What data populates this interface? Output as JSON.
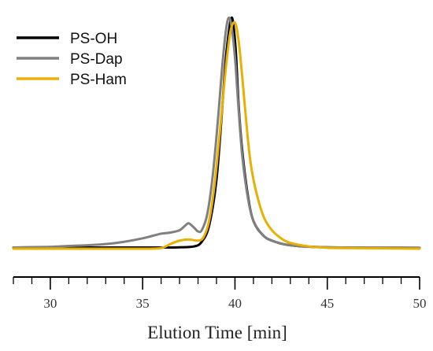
{
  "chart_data": {
    "type": "line",
    "title": "",
    "xlabel": "Elution Time [min]",
    "ylabel": "",
    "xlim": [
      28,
      50
    ],
    "ylim": [
      0,
      1
    ],
    "x_ticks_major": [
      30,
      35,
      40,
      45,
      50
    ],
    "x_tick_labels": [
      "30",
      "35",
      "40",
      "45",
      "50"
    ],
    "y_axis_visible": false,
    "grid": false,
    "legend_position": "top-left",
    "series": [
      {
        "name": "PS-OH",
        "color": "#000000",
        "points": [
          [
            28,
            0.005
          ],
          [
            30,
            0.005
          ],
          [
            32,
            0.005
          ],
          [
            34,
            0.005
          ],
          [
            36,
            0.005
          ],
          [
            37,
            0.006
          ],
          [
            37.8,
            0.01
          ],
          [
            38.2,
            0.03
          ],
          [
            38.6,
            0.1
          ],
          [
            39.0,
            0.3
          ],
          [
            39.3,
            0.6
          ],
          [
            39.5,
            0.82
          ],
          [
            39.7,
            0.96
          ],
          [
            39.8,
            1.0
          ],
          [
            39.9,
            0.98
          ],
          [
            40.05,
            0.85
          ],
          [
            40.2,
            0.62
          ],
          [
            40.4,
            0.42
          ],
          [
            40.7,
            0.23
          ],
          [
            41.0,
            0.12
          ],
          [
            41.5,
            0.06
          ],
          [
            42,
            0.035
          ],
          [
            43,
            0.015
          ],
          [
            45,
            0.006
          ],
          [
            50,
            0.004
          ]
        ]
      },
      {
        "name": "PS-Dap",
        "color": "#808080",
        "points": [
          [
            28,
            0.005
          ],
          [
            29,
            0.007
          ],
          [
            30,
            0.008
          ],
          [
            31,
            0.012
          ],
          [
            32,
            0.015
          ],
          [
            33,
            0.02
          ],
          [
            34,
            0.03
          ],
          [
            35,
            0.045
          ],
          [
            35.5,
            0.055
          ],
          [
            36,
            0.065
          ],
          [
            36.5,
            0.07
          ],
          [
            37,
            0.08
          ],
          [
            37.3,
            0.1
          ],
          [
            37.5,
            0.11
          ],
          [
            37.8,
            0.09
          ],
          [
            38,
            0.075
          ],
          [
            38.2,
            0.08
          ],
          [
            38.5,
            0.15
          ],
          [
            38.8,
            0.32
          ],
          [
            39.1,
            0.58
          ],
          [
            39.3,
            0.78
          ],
          [
            39.5,
            0.94
          ],
          [
            39.65,
            1.0
          ],
          [
            39.8,
            0.97
          ],
          [
            40.0,
            0.83
          ],
          [
            40.2,
            0.6
          ],
          [
            40.4,
            0.4
          ],
          [
            40.7,
            0.22
          ],
          [
            41.0,
            0.12
          ],
          [
            41.5,
            0.06
          ],
          [
            42,
            0.035
          ],
          [
            43,
            0.015
          ],
          [
            45,
            0.006
          ],
          [
            50,
            0.004
          ]
        ]
      },
      {
        "name": "PS-Ham",
        "color": "#E8B000",
        "points": [
          [
            28,
            0.0
          ],
          [
            32,
            0.0
          ],
          [
            35,
            0.0
          ],
          [
            36,
            0.003
          ],
          [
            36.5,
            0.02
          ],
          [
            37,
            0.035
          ],
          [
            37.5,
            0.04
          ],
          [
            38.0,
            0.035
          ],
          [
            38.3,
            0.05
          ],
          [
            38.6,
            0.12
          ],
          [
            38.9,
            0.28
          ],
          [
            39.2,
            0.52
          ],
          [
            39.5,
            0.78
          ],
          [
            39.75,
            0.94
          ],
          [
            40.0,
            0.98
          ],
          [
            40.2,
            0.9
          ],
          [
            40.4,
            0.74
          ],
          [
            40.6,
            0.56
          ],
          [
            40.8,
            0.4
          ],
          [
            41.0,
            0.3
          ],
          [
            41.3,
            0.2
          ],
          [
            41.6,
            0.13
          ],
          [
            42,
            0.08
          ],
          [
            42.5,
            0.045
          ],
          [
            43,
            0.025
          ],
          [
            44,
            0.01
          ],
          [
            45,
            0.004
          ],
          [
            47,
            0.002
          ],
          [
            50,
            0.0
          ]
        ]
      }
    ]
  }
}
